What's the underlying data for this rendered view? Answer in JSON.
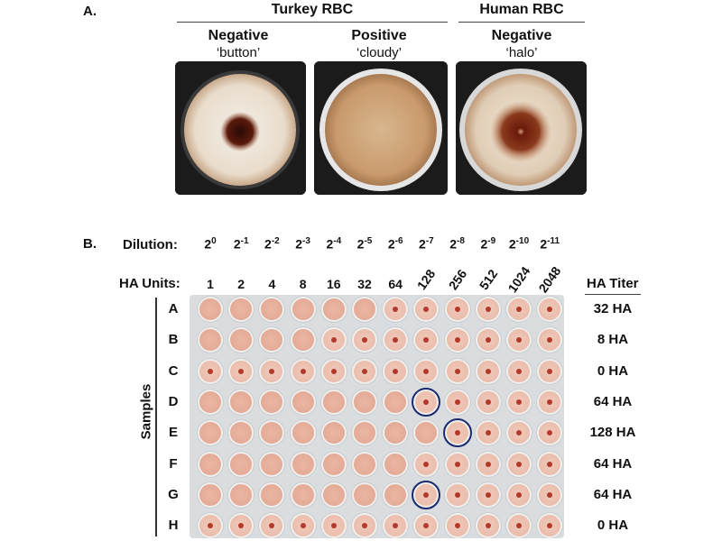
{
  "panelA": {
    "label": "A.",
    "groups": [
      {
        "title": "Turkey RBC"
      },
      {
        "title": "Human RBC"
      }
    ],
    "conditions": [
      {
        "title": "Negative",
        "sub": "‘button’",
        "appearance": "button"
      },
      {
        "title": "Positive",
        "sub": "‘cloudy’",
        "appearance": "cloudy"
      },
      {
        "title": "Negative",
        "sub": "‘halo’",
        "appearance": "halo"
      }
    ]
  },
  "panelB": {
    "label": "B.",
    "dilution_label": "Dilution:",
    "ha_units_label": "HA Units:",
    "titer_header": "HA Titer",
    "samples_label": "Samples",
    "dilution_exponents": [
      "0",
      "-1",
      "-2",
      "-3",
      "-4",
      "-5",
      "-6",
      "-7",
      "-8",
      "-9",
      "-10",
      "-11"
    ],
    "ha_units": [
      "1",
      "2",
      "4",
      "8",
      "16",
      "32",
      "64",
      "128",
      "256",
      "512",
      "1024",
      "2048"
    ],
    "rows": [
      {
        "label": "A",
        "titer": "32 HA",
        "positive_count": 6,
        "circled_col": null
      },
      {
        "label": "B",
        "titer": "8 HA",
        "positive_count": 4,
        "circled_col": null
      },
      {
        "label": "C",
        "titer": "0 HA",
        "positive_count": 0,
        "circled_col": null
      },
      {
        "label": "D",
        "titer": "64 HA",
        "positive_count": 7,
        "circled_col": 7
      },
      {
        "label": "E",
        "titer": "128 HA",
        "positive_count": 8,
        "circled_col": 8
      },
      {
        "label": "F",
        "titer": "64 HA",
        "positive_count": 7,
        "circled_col": null
      },
      {
        "label": "G",
        "titer": "64 HA",
        "positive_count": 7,
        "circled_col": 7
      },
      {
        "label": "H",
        "titer": "0 HA",
        "positive_count": 0,
        "circled_col": null
      }
    ],
    "colors": {
      "well_fill": "#e9b2a0",
      "button_dot": "#b33a2a",
      "circle": "#1c2a6e"
    }
  }
}
